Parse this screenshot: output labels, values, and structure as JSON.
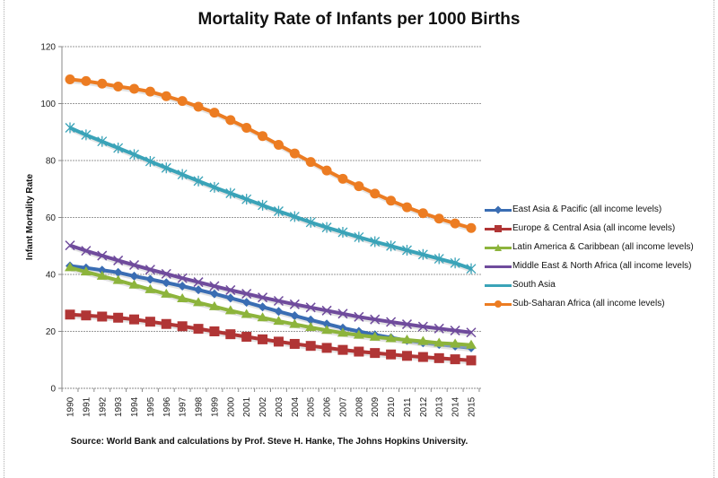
{
  "chart_data": {
    "type": "line",
    "title": "Mortality Rate of Infants per 1000 Births",
    "xlabel": "",
    "ylabel": "Infant Mortality Rate",
    "source": "Source: World Bank and calculations by Prof. Steve H. Hanke, The Johns Hopkins University.",
    "ylim": [
      0,
      120
    ],
    "yticks": [
      0,
      20,
      40,
      60,
      80,
      100,
      120
    ],
    "grid": true,
    "legend_position": "right",
    "x": [
      "1990",
      "1991",
      "1992",
      "1993",
      "1994",
      "1995",
      "1996",
      "1997",
      "1998",
      "1999",
      "2000",
      "2001",
      "2002",
      "2003",
      "2004",
      "2005",
      "2006",
      "2007",
      "2008",
      "2009",
      "2010",
      "2011",
      "2012",
      "2013",
      "2014",
      "2015"
    ],
    "series": [
      {
        "name": "East Asia & Pacific (all income levels)",
        "color": "#3a6db3",
        "marker": "diamond",
        "values": [
          43.0,
          42.3,
          41.5,
          40.7,
          39.4,
          38.3,
          37.1,
          35.9,
          34.6,
          33.2,
          31.7,
          30.2,
          28.6,
          27.0,
          25.5,
          24.0,
          22.6,
          21.2,
          20.0,
          18.8,
          17.8,
          16.8,
          16.0,
          15.4,
          14.8,
          14.2
        ]
      },
      {
        "name": "Europe & Central Asia (all income levels)",
        "color": "#b03535",
        "marker": "square",
        "values": [
          25.9,
          25.6,
          25.2,
          24.8,
          24.2,
          23.4,
          22.6,
          21.8,
          20.9,
          20.0,
          19.0,
          18.1,
          17.2,
          16.4,
          15.6,
          14.9,
          14.2,
          13.5,
          12.9,
          12.4,
          11.9,
          11.4,
          11.0,
          10.6,
          10.2,
          9.8
        ]
      },
      {
        "name": "Latin America & Caribbean (all income levels)",
        "color": "#8db43c",
        "marker": "triangle",
        "values": [
          42.4,
          40.9,
          39.4,
          37.9,
          36.3,
          34.7,
          33.1,
          31.5,
          30.1,
          28.7,
          27.3,
          26.0,
          24.8,
          23.6,
          22.5,
          21.4,
          20.4,
          19.4,
          18.7,
          18.0,
          17.5,
          17.0,
          16.5,
          15.9,
          15.6,
          15.2
        ]
      },
      {
        "name": "Middle East & North Africa (all income levels)",
        "color": "#6f4b9c",
        "marker": "x",
        "values": [
          50.2,
          48.3,
          46.6,
          44.9,
          43.3,
          41.7,
          40.2,
          38.7,
          37.3,
          35.9,
          34.5,
          33.2,
          31.9,
          30.7,
          29.5,
          28.4,
          27.3,
          26.2,
          25.1,
          24.2,
          23.3,
          22.5,
          21.7,
          21.0,
          20.3,
          19.6
        ]
      },
      {
        "name": "South Asia",
        "color": "#3aa3b8",
        "marker": "star",
        "values": [
          91.5,
          89.0,
          86.7,
          84.4,
          82.1,
          79.7,
          77.4,
          75.1,
          72.8,
          70.6,
          68.5,
          66.4,
          64.3,
          62.2,
          60.3,
          58.3,
          56.5,
          54.8,
          53.1,
          51.5,
          50.0,
          48.5,
          47.0,
          45.5,
          44.0,
          42.0
        ]
      },
      {
        "name": "Sub-Saharan Africa (all income levels)",
        "color": "#ec7c22",
        "marker": "circle",
        "values": [
          108.5,
          107.9,
          107.0,
          106.0,
          105.2,
          104.2,
          102.6,
          100.9,
          98.9,
          96.8,
          94.2,
          91.5,
          88.6,
          85.5,
          82.5,
          79.5,
          76.5,
          73.6,
          71.0,
          68.4,
          65.9,
          63.6,
          61.5,
          59.6,
          57.9,
          56.3
        ]
      }
    ]
  }
}
